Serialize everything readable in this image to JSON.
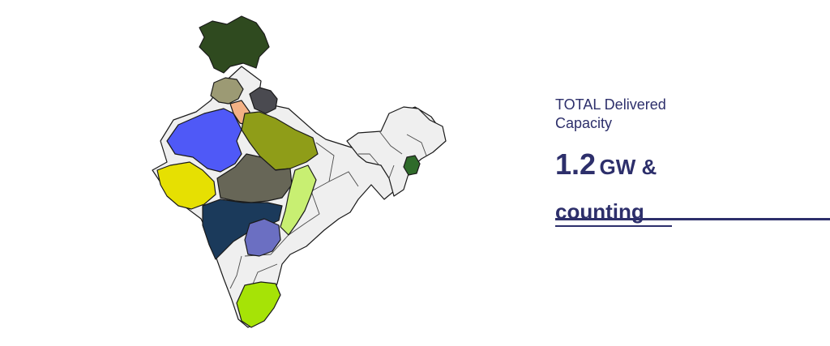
{
  "stat": {
    "caption_line1": "TOTAL Delivered",
    "caption_line2": "Capacity",
    "value": "1.2",
    "suffix_line1": "GW &",
    "suffix_line2": "counting"
  },
  "colors": {
    "text": "#2d2f6b",
    "base_land": "#efefef",
    "jammu_kashmir": "#2f4a1f",
    "himachal_pradesh": "#9c9a74",
    "punjab": "#9c9a74",
    "haryana": "#f3b185",
    "uttarakhand": "#4a4a50",
    "rajasthan": "#4f59f7",
    "uttar_pradesh": "#8f9d18",
    "gujarat": "#e6e002",
    "madhya_pradesh": "#676657",
    "chhattisgarh": "#c8ef72",
    "maharashtra": "#1b3a5b",
    "telangana": "#6b6fc2",
    "tamil_nadu": "#a6e306",
    "manipur": "#2f6b2a"
  }
}
